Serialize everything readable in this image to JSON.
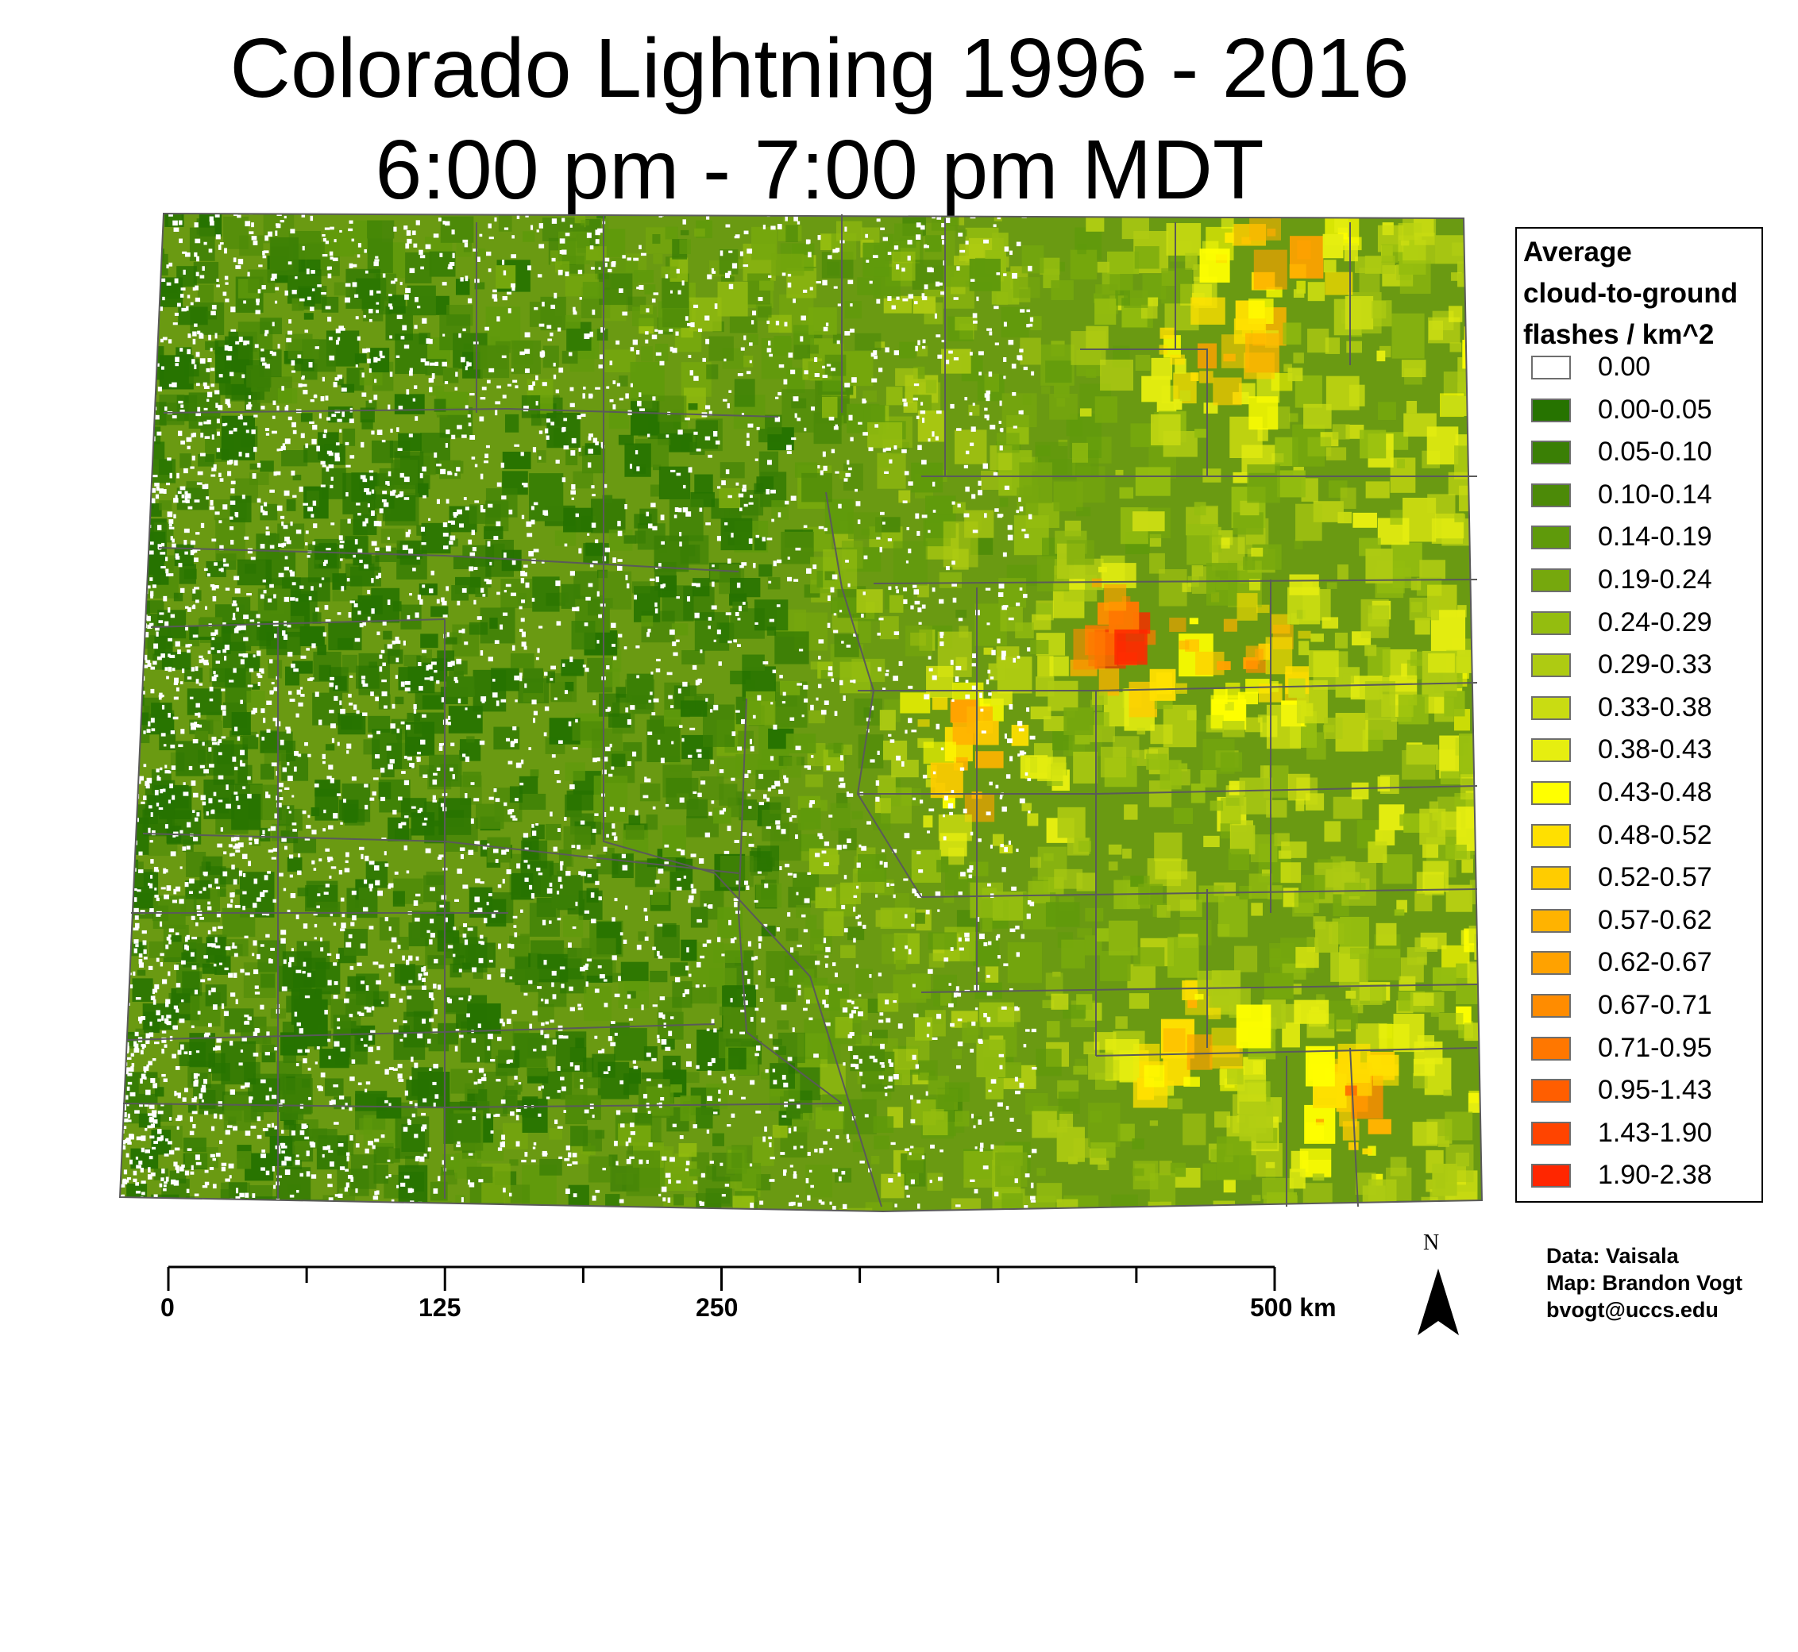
{
  "title": {
    "line1": "Colorado Lightning 1996 - 2016",
    "line2": "6:00 pm - 7:00 pm MDT"
  },
  "legend": {
    "title_lines": [
      "Average",
      "cloud-to-ground",
      "flashes / km^2"
    ],
    "classes": [
      {
        "label": "0.00",
        "color": "#ffffff"
      },
      {
        "label": "0.00-0.05",
        "color": "#267300"
      },
      {
        "label": "0.05-0.10",
        "color": "#3a7f05"
      },
      {
        "label": "0.10-0.14",
        "color": "#4c8a08"
      },
      {
        "label": "0.14-0.19",
        "color": "#5f9a0b"
      },
      {
        "label": "0.19-0.24",
        "color": "#76a80d"
      },
      {
        "label": "0.24-0.29",
        "color": "#94bd0f"
      },
      {
        "label": "0.29-0.33",
        "color": "#aecb12"
      },
      {
        "label": "0.33-0.38",
        "color": "#c9dc12"
      },
      {
        "label": "0.38-0.43",
        "color": "#e6ee10"
      },
      {
        "label": "0.43-0.48",
        "color": "#ffff00"
      },
      {
        "label": "0.48-0.52",
        "color": "#ffe000"
      },
      {
        "label": "0.52-0.57",
        "color": "#ffcc00"
      },
      {
        "label": "0.57-0.62",
        "color": "#ffb300"
      },
      {
        "label": "0.62-0.67",
        "color": "#ffa200"
      },
      {
        "label": "0.67-0.71",
        "color": "#ff8c00"
      },
      {
        "label": "0.71-0.95",
        "color": "#ff7700"
      },
      {
        "label": "0.95-1.43",
        "color": "#ff5e00"
      },
      {
        "label": "1.43-1.90",
        "color": "#ff4400"
      },
      {
        "label": "1.90-2.38",
        "color": "#ff2600"
      }
    ]
  },
  "scale_bar": {
    "labels": [
      "0",
      "125",
      "250",
      "500 km"
    ]
  },
  "north_arrow": {
    "label": "N",
    "icon": "north-arrow-icon"
  },
  "credits": {
    "data": "Data: Vaisala",
    "map": "Map: Brandon Vogt",
    "email": "bvogt@uccs.edu"
  },
  "map": {
    "subject": "Colorado",
    "county_line_color": "#5a5a5a"
  }
}
